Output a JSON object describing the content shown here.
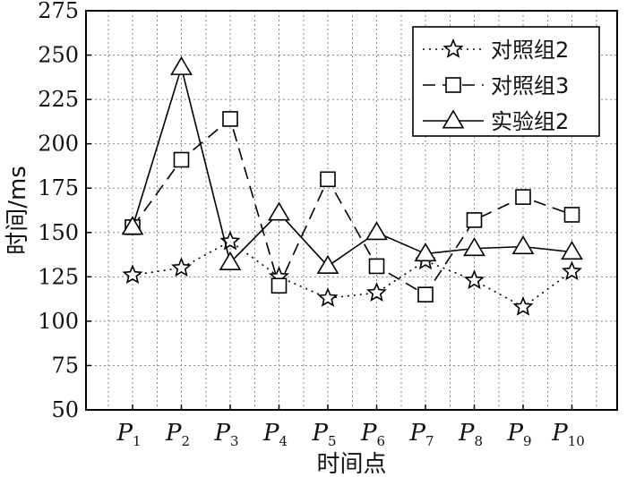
{
  "chart_data": {
    "type": "line",
    "title": "",
    "xlabel": "时间点",
    "ylabel": "时间/ms",
    "categories": [
      {
        "main": "P",
        "sub": "1"
      },
      {
        "main": "P",
        "sub": "2"
      },
      {
        "main": "P",
        "sub": "3"
      },
      {
        "main": "P",
        "sub": "4"
      },
      {
        "main": "P",
        "sub": "5"
      },
      {
        "main": "P",
        "sub": "6"
      },
      {
        "main": "P",
        "sub": "7"
      },
      {
        "main": "P",
        "sub": "8"
      },
      {
        "main": "P",
        "sub": "9"
      },
      {
        "main": "P",
        "sub": "10"
      }
    ],
    "ylim": [
      50,
      275
    ],
    "yticks": [
      "50",
      "75",
      "100",
      "125",
      "150",
      "175",
      "200",
      "225",
      "250",
      "275"
    ],
    "grid": true,
    "legend_position": "top-right",
    "series": [
      {
        "name": "对照组2",
        "marker": "star",
        "line": "dotted",
        "values": [
          126,
          130,
          145,
          125,
          113,
          116,
          134,
          123,
          108,
          128
        ]
      },
      {
        "name": "对照组3",
        "marker": "square",
        "line": "dashed",
        "values": [
          153,
          191,
          214,
          120,
          180,
          131,
          115,
          157,
          170,
          160
        ]
      },
      {
        "name": "实验组2",
        "marker": "triangle",
        "line": "solid",
        "values": [
          153,
          243,
          133,
          161,
          131,
          150,
          138,
          141,
          142,
          139
        ]
      }
    ],
    "colors": {
      "line": "#000000",
      "grid": "#8a8a8a",
      "marker_fill": "#ffffff"
    }
  }
}
